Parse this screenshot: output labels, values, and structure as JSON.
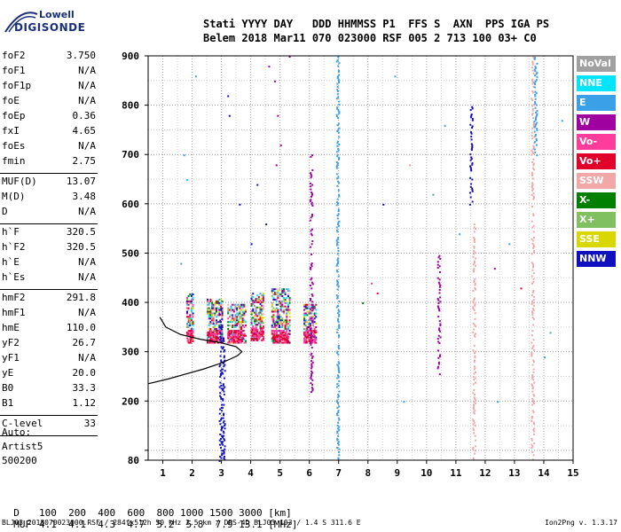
{
  "logo": {
    "line1": "Lowell",
    "line2": "DIGISONDE"
  },
  "header": {
    "line1": "Stati YYYY DAY   DDD HHMMSS P1  FFS S  AXN  PPS IGA PS",
    "line2": "Belem 2018 Mar11 070 023000 RSF 005 2 713 100 03+ C0"
  },
  "params_group1": [
    {
      "label": "foF2",
      "value": "3.750"
    },
    {
      "label": "foF1",
      "value": "N/A"
    },
    {
      "label": "foF1p",
      "value": "N/A"
    },
    {
      "label": "foE",
      "value": "N/A"
    },
    {
      "label": "foEp",
      "value": "0.36"
    },
    {
      "label": "fxI",
      "value": "4.65"
    },
    {
      "label": "foEs",
      "value": "N/A"
    },
    {
      "label": "fmin",
      "value": "2.75"
    }
  ],
  "params_group2": [
    {
      "label": "MUF(D)",
      "value": "13.07"
    },
    {
      "label": "M(D)",
      "value": "3.48"
    },
    {
      "label": "D",
      "value": "N/A"
    }
  ],
  "params_group3": [
    {
      "label": "h`F",
      "value": "320.5"
    },
    {
      "label": "h`F2",
      "value": "320.5"
    },
    {
      "label": "h`E",
      "value": "N/A"
    },
    {
      "label": "h`Es",
      "value": "N/A"
    }
  ],
  "params_group4": [
    {
      "label": "hmF2",
      "value": "291.8"
    },
    {
      "label": "hmF1",
      "value": "N/A"
    },
    {
      "label": "hmE",
      "value": "110.0"
    },
    {
      "label": "yF2",
      "value": "26.7"
    },
    {
      "label": "yF1",
      "value": "N/A"
    },
    {
      "label": "yE",
      "value": "20.0"
    },
    {
      "label": "B0",
      "value": "33.3"
    },
    {
      "label": "B1",
      "value": "1.12"
    }
  ],
  "params_group5": [
    {
      "label": "C-level",
      "value": "33"
    }
  ],
  "auto": {
    "line1": "Auto:",
    "line2": "Artist5",
    "line3": "500200"
  },
  "muf_table": {
    "d_label": "D",
    "d_values": "100  200  400  600  800 1000 1500 3000 [km]",
    "muf_label": "MUF",
    "muf_values": "4.1  4.1  4.3  4.7  5.2  5.8  7.9 13.1 [MHz]"
  },
  "footer": {
    "left": "BLJ03_2018070023000.RSF / 284fx512h 50 kHz 2.5 km / DPS-4D BLJ03 103 / 1.4 S 311.6 E",
    "right": "Ion2Png v. 1.3.17"
  },
  "legend": [
    {
      "label": "NoVal",
      "bg": "#a0a0a0",
      "fg": "#ffffff"
    },
    {
      "label": "NNE",
      "bg": "#00e5ff",
      "fg": "#ffffff"
    },
    {
      "label": "E",
      "bg": "#3aa0e8",
      "fg": "#ffffff"
    },
    {
      "label": "W",
      "bg": "#a000a0",
      "fg": "#ffffff"
    },
    {
      "label": "Vo-",
      "bg": "#ff3c9c",
      "fg": "#ffffff"
    },
    {
      "label": "Vo+",
      "bg": "#e0002a",
      "fg": "#ffffff"
    },
    {
      "label": "SSW",
      "bg": "#f2a8a8",
      "fg": "#ffffff"
    },
    {
      "label": "X-",
      "bg": "#008000",
      "fg": "#ffffff"
    },
    {
      "label": "X+",
      "bg": "#80c060",
      "fg": "#ffffff"
    },
    {
      "label": "SSE",
      "bg": "#d8d800",
      "fg": "#ffffff"
    },
    {
      "label": "NNW",
      "bg": "#1010c0",
      "fg": "#ffffff"
    }
  ],
  "chart_data": {
    "type": "scatter",
    "xlim": [
      0.5,
      15
    ],
    "ylim": [
      80,
      900
    ],
    "x_ticks": [
      1,
      2,
      3,
      4,
      5,
      6,
      7,
      8,
      9,
      10,
      11,
      12,
      13,
      14,
      15
    ],
    "y_ticks": [
      80,
      100,
      200,
      300,
      400,
      500,
      600,
      700,
      800,
      900
    ],
    "y_tick_labels": [
      "80",
      "",
      "200",
      "300",
      "400",
      "500",
      "600",
      "700",
      "800",
      "900"
    ],
    "grid": true,
    "legend_position": "right",
    "trace_profile": [
      [
        0.5,
        235
      ],
      [
        1.2,
        245
      ],
      [
        1.8,
        255
      ],
      [
        2.4,
        265
      ],
      [
        2.9,
        275
      ],
      [
        3.3,
        285
      ],
      [
        3.55,
        292
      ],
      [
        3.7,
        300
      ],
      [
        3.5,
        310
      ],
      [
        3.0,
        318
      ],
      [
        2.3,
        325
      ],
      [
        1.6,
        335
      ],
      [
        1.1,
        350
      ],
      [
        0.9,
        370
      ]
    ],
    "dense_columns": [
      {
        "x": [
          1.8,
          2.0
        ],
        "y": [
          320,
          420
        ],
        "series": "mixed"
      },
      {
        "x": [
          2.5,
          3.0
        ],
        "y": [
          320,
          410
        ],
        "series": "mixed"
      },
      {
        "x": [
          3.2,
          3.8
        ],
        "y": [
          320,
          400
        ],
        "series": "mixed"
      },
      {
        "x": [
          4.0,
          4.4
        ],
        "y": [
          325,
          420
        ],
        "series": "mixed"
      },
      {
        "x": [
          4.7,
          5.3
        ],
        "y": [
          320,
          430
        ],
        "series": "mixed"
      },
      {
        "x": [
          5.8,
          6.2
        ],
        "y": [
          320,
          400
        ],
        "series": "mixed"
      }
    ],
    "vertical_traces": [
      {
        "x": 2.95,
        "y": [
          80,
          390
        ],
        "series": "NNW"
      },
      {
        "x": 3.05,
        "y": [
          80,
          330
        ],
        "series": "NNW"
      },
      {
        "x": 6.05,
        "y": [
          220,
          700
        ],
        "series": "W"
      },
      {
        "x": 6.95,
        "y": [
          80,
          900
        ],
        "series": "E"
      },
      {
        "x": 10.4,
        "y": [
          250,
          500
        ],
        "series": "W"
      },
      {
        "x": 11.5,
        "y": [
          600,
          800
        ],
        "series": "NNW"
      },
      {
        "x": 11.6,
        "y": [
          80,
          560
        ],
        "series": "SSW"
      },
      {
        "x": 13.6,
        "y": [
          80,
          900
        ],
        "series": "SSW"
      },
      {
        "x": 13.7,
        "y": [
          700,
          900
        ],
        "series": "E"
      }
    ],
    "scatter_points": [
      [
        1.7,
        700,
        "E"
      ],
      [
        1.8,
        650,
        "NNE"
      ],
      [
        2.1,
        860,
        "E"
      ],
      [
        3.2,
        820,
        "NNW"
      ],
      [
        3.25,
        780,
        "NNW"
      ],
      [
        4.6,
        880,
        "W"
      ],
      [
        4.8,
        850,
        "W"
      ],
      [
        4.9,
        780,
        "W"
      ],
      [
        5.0,
        720,
        "W"
      ],
      [
        4.85,
        680,
        "W"
      ],
      [
        5.3,
        900,
        "W"
      ],
      [
        4.5,
        560,
        "NNW"
      ],
      [
        4.0,
        520,
        "NNW"
      ],
      [
        4.2,
        640,
        "NNW"
      ],
      [
        8.1,
        440,
        "Vo-"
      ],
      [
        8.3,
        420,
        "Vo+"
      ],
      [
        7.8,
        400,
        "X-"
      ],
      [
        10.6,
        760,
        "E"
      ],
      [
        11.1,
        540,
        "E"
      ],
      [
        12.3,
        470,
        "W"
      ],
      [
        12.8,
        520,
        "E"
      ],
      [
        13.2,
        430,
        "Vo+"
      ],
      [
        14.0,
        290,
        "E"
      ],
      [
        14.2,
        340,
        "E"
      ],
      [
        14.6,
        770,
        "E"
      ],
      [
        8.9,
        860,
        "E"
      ],
      [
        9.4,
        680,
        "SSW"
      ],
      [
        8.5,
        600,
        "NNW"
      ],
      [
        9.2,
        200,
        "E"
      ],
      [
        12.4,
        200,
        "E"
      ],
      [
        1.6,
        480,
        "E"
      ],
      [
        3.6,
        600,
        "NNW"
      ],
      [
        10.2,
        620,
        "E"
      ]
    ]
  }
}
